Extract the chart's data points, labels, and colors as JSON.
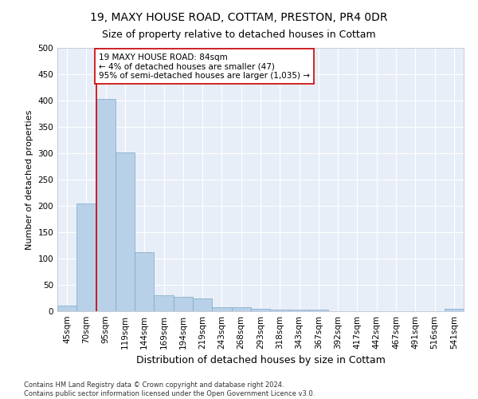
{
  "title": "19, MAXY HOUSE ROAD, COTTAM, PRESTON, PR4 0DR",
  "subtitle": "Size of property relative to detached houses in Cottam",
  "xlabel": "Distribution of detached houses by size in Cottam",
  "ylabel": "Number of detached properties",
  "bar_labels": [
    "45sqm",
    "70sqm",
    "95sqm",
    "119sqm",
    "144sqm",
    "169sqm",
    "194sqm",
    "219sqm",
    "243sqm",
    "268sqm",
    "293sqm",
    "318sqm",
    "343sqm",
    "367sqm",
    "392sqm",
    "417sqm",
    "442sqm",
    "467sqm",
    "491sqm",
    "516sqm",
    "541sqm"
  ],
  "bar_values": [
    10,
    205,
    403,
    302,
    112,
    30,
    27,
    25,
    8,
    7,
    5,
    3,
    3,
    3,
    0,
    0,
    0,
    0,
    0,
    0,
    5
  ],
  "bar_color": "#b8d0e8",
  "bar_edge_color": "#7aaac8",
  "property_line_index": 2,
  "property_line_color": "#cc0000",
  "annotation_text": "19 MAXY HOUSE ROAD: 84sqm\n← 4% of detached houses are smaller (47)\n95% of semi-detached houses are larger (1,035) →",
  "annotation_box_edgecolor": "#cc0000",
  "ylim": [
    0,
    500
  ],
  "yticks": [
    0,
    50,
    100,
    150,
    200,
    250,
    300,
    350,
    400,
    450,
    500
  ],
  "background_color": "#e8eef8",
  "footer_text": "Contains HM Land Registry data © Crown copyright and database right 2024.\nContains public sector information licensed under the Open Government Licence v3.0.",
  "title_fontsize": 10,
  "subtitle_fontsize": 9,
  "xlabel_fontsize": 9,
  "ylabel_fontsize": 8,
  "tick_fontsize": 7.5,
  "annotation_fontsize": 7.5,
  "footer_fontsize": 6
}
